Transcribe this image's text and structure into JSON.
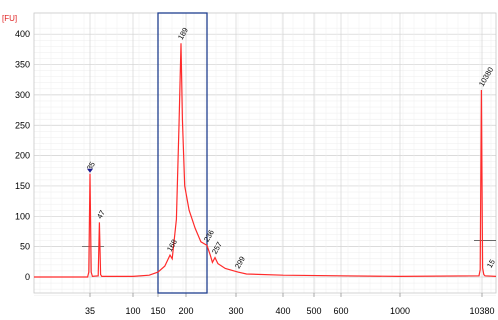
{
  "chart_data": {
    "type": "line",
    "y_unit": "[FU]",
    "ylim": [
      -35,
      420
    ],
    "y_ticks": [
      0,
      50,
      100,
      150,
      200,
      250,
      300,
      350,
      400
    ],
    "x_scale": "log (bp size)",
    "x_ticks": [
      "35",
      "100",
      "150",
      "200",
      "300",
      "400",
      "500",
      "600",
      "1000",
      "10380"
    ],
    "grid": true,
    "colors": {
      "trace": "#ff2b2b",
      "lower_marker_label": "#2e9a2e",
      "upper_marker_label": "#9b4dde",
      "selection_box": "#1f3f8f",
      "grid": "#dcdcdc",
      "axis_text": "#000000",
      "unit_text": "#e02020"
    },
    "peaks": [
      {
        "label": "35",
        "x_bp": 35,
        "y": 170,
        "marker": "lower"
      },
      {
        "label": "47",
        "x_bp": 47,
        "y": 90
      },
      {
        "label": "168",
        "x_bp": 168,
        "y": 36
      },
      {
        "label": "189",
        "x_bp": 189,
        "y": 385
      },
      {
        "label": "236",
        "x_bp": 236,
        "y": 52
      },
      {
        "label": "257",
        "x_bp": 257,
        "y": 32
      },
      {
        "label": "299",
        "x_bp": 299,
        "y": 8
      },
      {
        "label": "10380",
        "x_bp": 10380,
        "y": 308,
        "marker": "upper"
      },
      {
        "label": "15",
        "x_bp": 10380,
        "y": 4
      }
    ],
    "trace_points": [
      [
        35,
        0
      ],
      [
        35,
        8
      ],
      [
        35,
        170
      ],
      [
        35,
        8
      ],
      [
        35,
        1
      ],
      [
        47,
        2
      ],
      [
        47,
        90
      ],
      [
        47,
        4
      ],
      [
        47,
        1
      ],
      [
        100,
        1
      ],
      [
        130,
        3
      ],
      [
        150,
        8
      ],
      [
        160,
        18
      ],
      [
        168,
        36
      ],
      [
        172,
        30
      ],
      [
        180,
        95
      ],
      [
        185,
        250
      ],
      [
        189,
        385
      ],
      [
        192,
        260
      ],
      [
        197,
        150
      ],
      [
        205,
        110
      ],
      [
        215,
        80
      ],
      [
        225,
        58
      ],
      [
        236,
        52
      ],
      [
        245,
        35
      ],
      [
        250,
        24
      ],
      [
        257,
        32
      ],
      [
        262,
        22
      ],
      [
        275,
        14
      ],
      [
        299,
        8
      ],
      [
        320,
        5
      ],
      [
        400,
        3
      ],
      [
        600,
        2
      ],
      [
        1000,
        1
      ],
      [
        10380,
        2
      ],
      [
        10380,
        12
      ],
      [
        10380,
        308
      ],
      [
        10380,
        15
      ],
      [
        10380,
        4
      ],
      [
        10380,
        2
      ]
    ],
    "selection_range_bp": [
      150,
      236
    ],
    "marker_lines": [
      {
        "x_bp": 35,
        "y": 50
      },
      {
        "x_bp": 10380,
        "y": 60
      }
    ]
  }
}
